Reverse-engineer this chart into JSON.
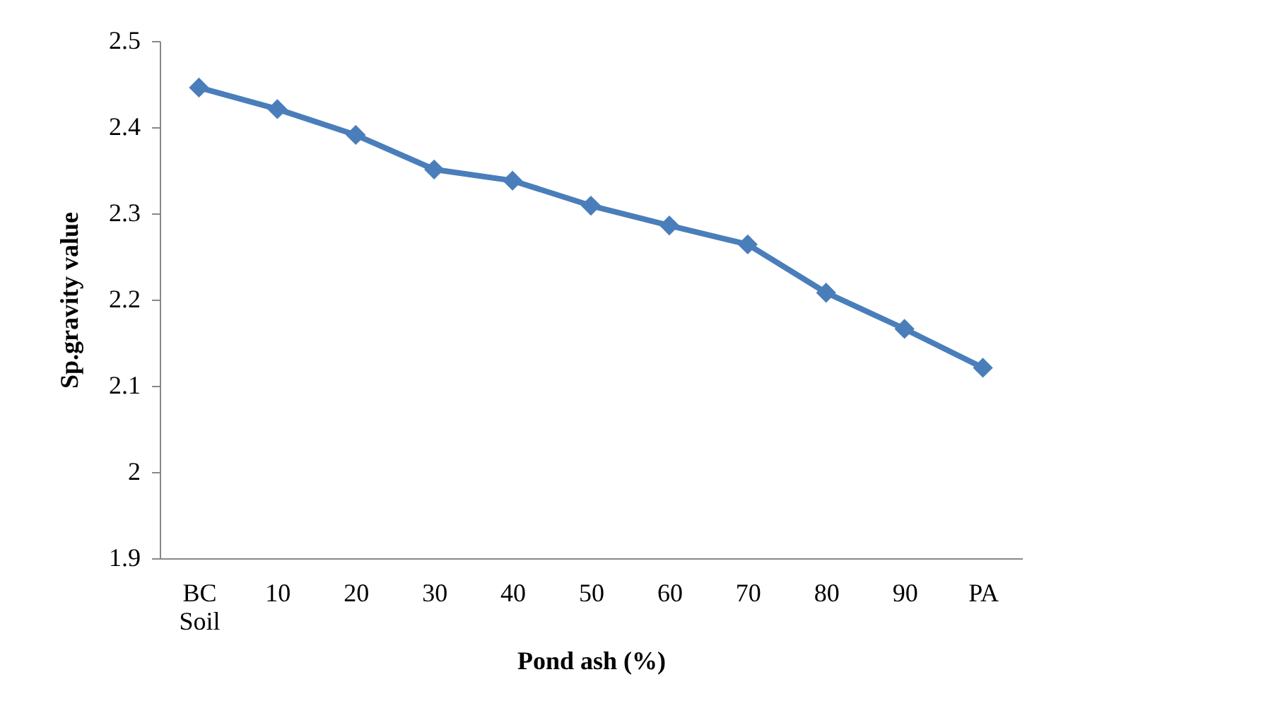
{
  "chart_data": {
    "type": "line",
    "xlabel": "Pond ash (%)",
    "ylabel": "Sp.gravity value",
    "categories": [
      "BC Soil",
      "10",
      "20",
      "30",
      "40",
      "50",
      "60",
      "70",
      "80",
      "90",
      "PA"
    ],
    "series": [
      {
        "color": "#4a7ebb",
        "values": [
          2.446,
          2.421,
          2.391,
          2.351,
          2.338,
          2.309,
          2.286,
          2.264,
          2.208,
          2.166,
          2.121
        ]
      }
    ],
    "ylim": [
      1.9,
      2.5
    ],
    "yticks": [
      1.9,
      2,
      2.1,
      2.2,
      2.3,
      2.4,
      2.5
    ],
    "grid": false,
    "legend": false,
    "marker": "diamond",
    "line_style": "solid"
  }
}
